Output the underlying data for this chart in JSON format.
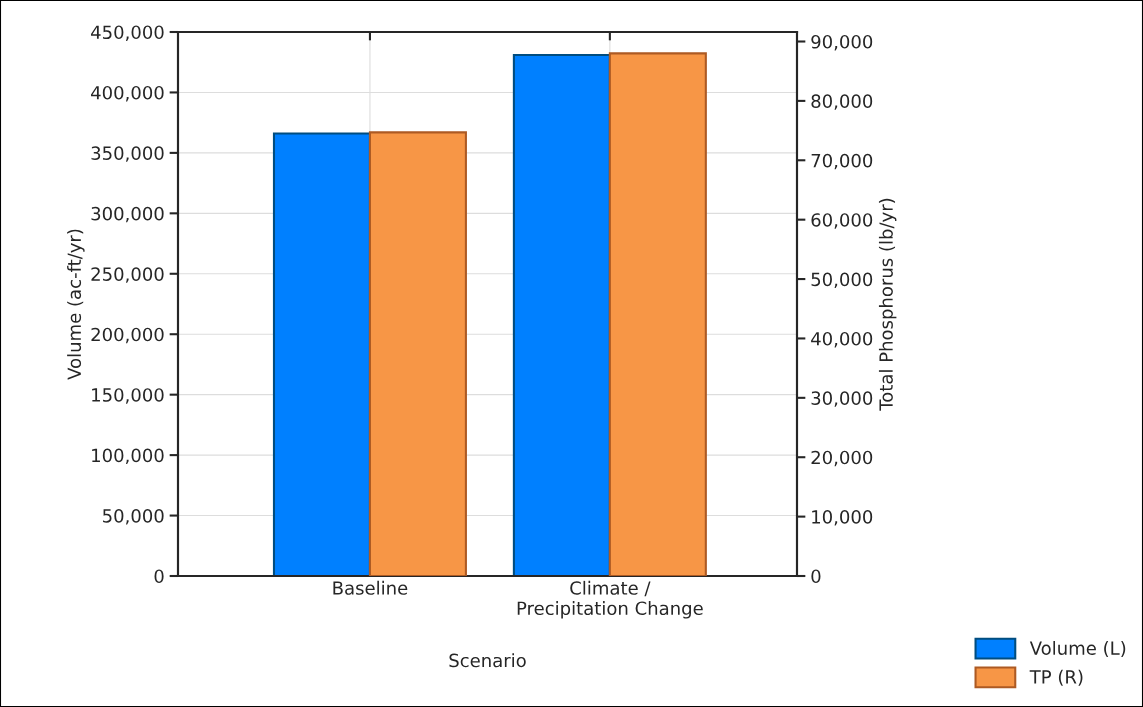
{
  "chart_data": {
    "type": "bar",
    "xlabel": "Scenario",
    "ylabel": "Volume (ac-ft/yr)",
    "y2label": "Total Phosphorus (lb/yr)",
    "categories": [
      "Baseline",
      "Climate /\nPrecipitation Change"
    ],
    "series": [
      {
        "name": "Volume (L)",
        "color": "#0080ff",
        "values": [
          366000,
          431000
        ]
      },
      {
        "name": "TP (R)",
        "color": "#f79646",
        "values": [
          74700,
          88000
        ],
        "axis": "y2"
      }
    ],
    "ylim": [
      0,
      450000
    ],
    "yticks": [
      {
        "value": 0,
        "label": "0"
      },
      {
        "value": 50000,
        "label": "50,000"
      },
      {
        "value": 100000,
        "label": "100,000"
      },
      {
        "value": 150000,
        "label": "150,000"
      },
      {
        "value": 200000,
        "label": "200,000"
      },
      {
        "value": 250000,
        "label": "250,000"
      },
      {
        "value": 300000,
        "label": "300,000"
      },
      {
        "value": 350000,
        "label": "350,000"
      },
      {
        "value": 400000,
        "label": "400,000"
      },
      {
        "value": 450000,
        "label": "450,000"
      }
    ],
    "y2lim": [
      0,
      91600
    ],
    "y2ticks": [
      {
        "value": 0,
        "label": "0"
      },
      {
        "value": 10000,
        "label": "10,000"
      },
      {
        "value": 20000,
        "label": "20,000"
      },
      {
        "value": 30000,
        "label": "30,000"
      },
      {
        "value": 40000,
        "label": "40,000"
      },
      {
        "value": 50000,
        "label": "50,000"
      },
      {
        "value": 60000,
        "label": "60,000"
      },
      {
        "value": 70000,
        "label": "70,000"
      },
      {
        "value": 80000,
        "label": "80,000"
      },
      {
        "value": 90000,
        "label": "90,000"
      }
    ],
    "grid": true,
    "legend": "bottom right"
  }
}
